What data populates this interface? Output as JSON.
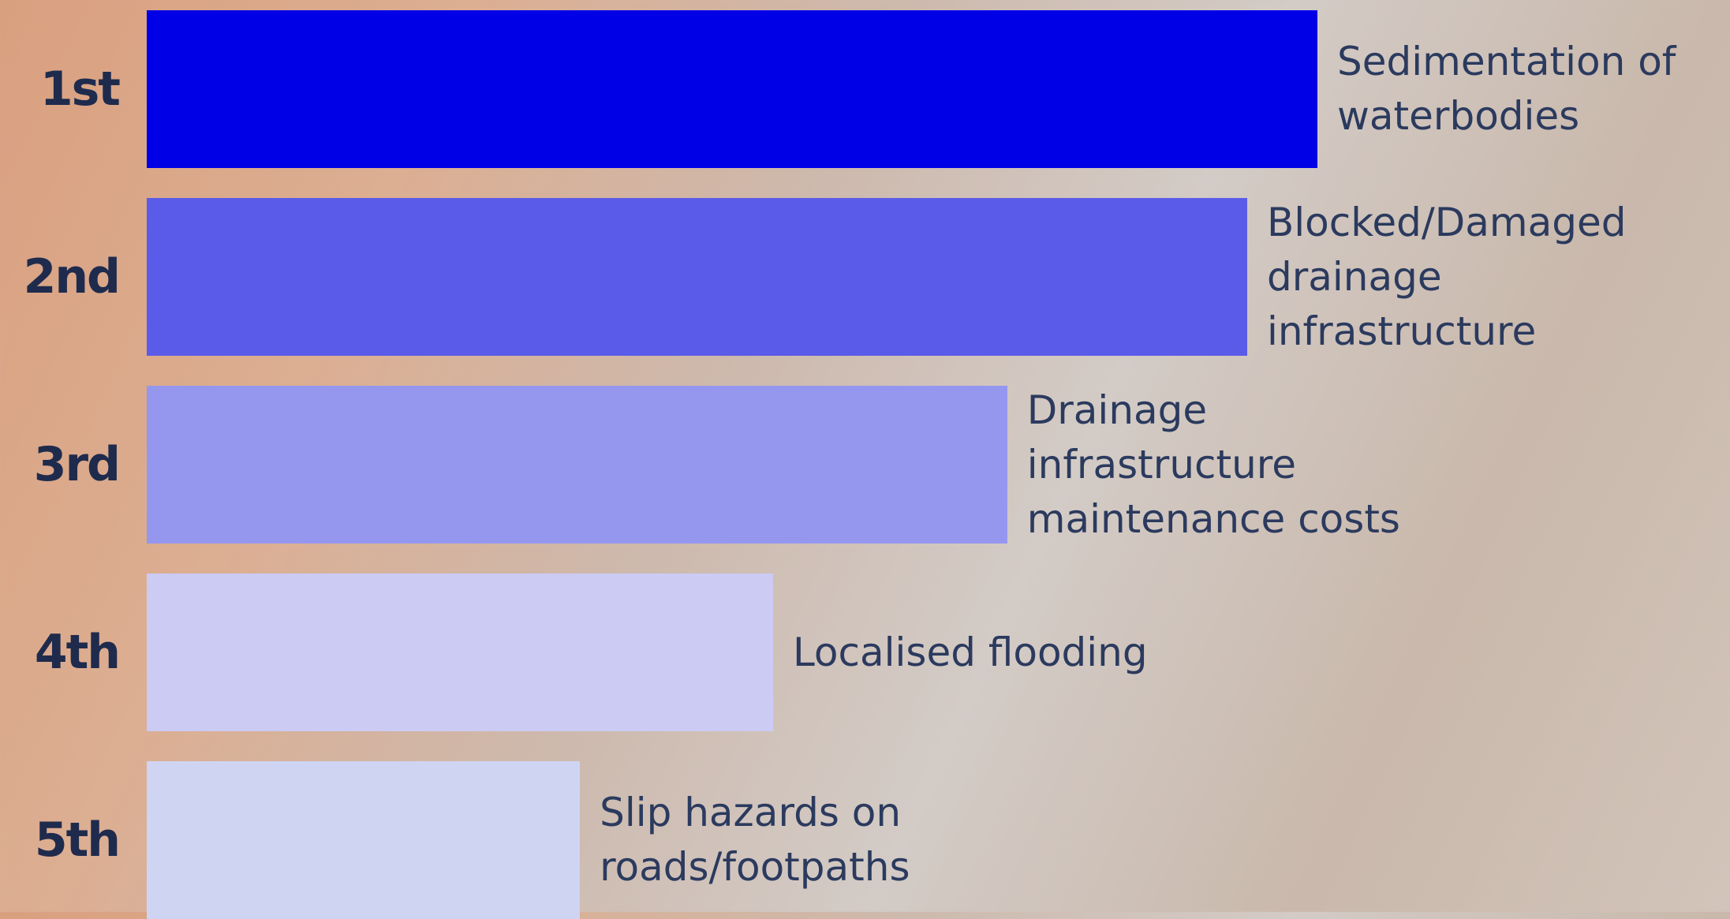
{
  "chart_data": {
    "type": "bar",
    "orientation": "horizontal",
    "categories": [
      "1st",
      "2nd",
      "3rd",
      "4th",
      "5th"
    ],
    "labels": [
      "Sedimentation of waterbodies",
      "Blocked/Damaged drainage infrastructure",
      "Drainage infrastructure maintenance costs",
      "Localised flooding",
      "Slip hazards on roads/footpaths"
    ],
    "values": [
      100,
      94,
      73.5,
      53.5,
      37
    ],
    "colors": [
      "#0000e6",
      "#5a5be8",
      "#9597ef",
      "#cbcbf4",
      "#cfd4f2"
    ],
    "xlim": [
      0,
      100
    ]
  }
}
